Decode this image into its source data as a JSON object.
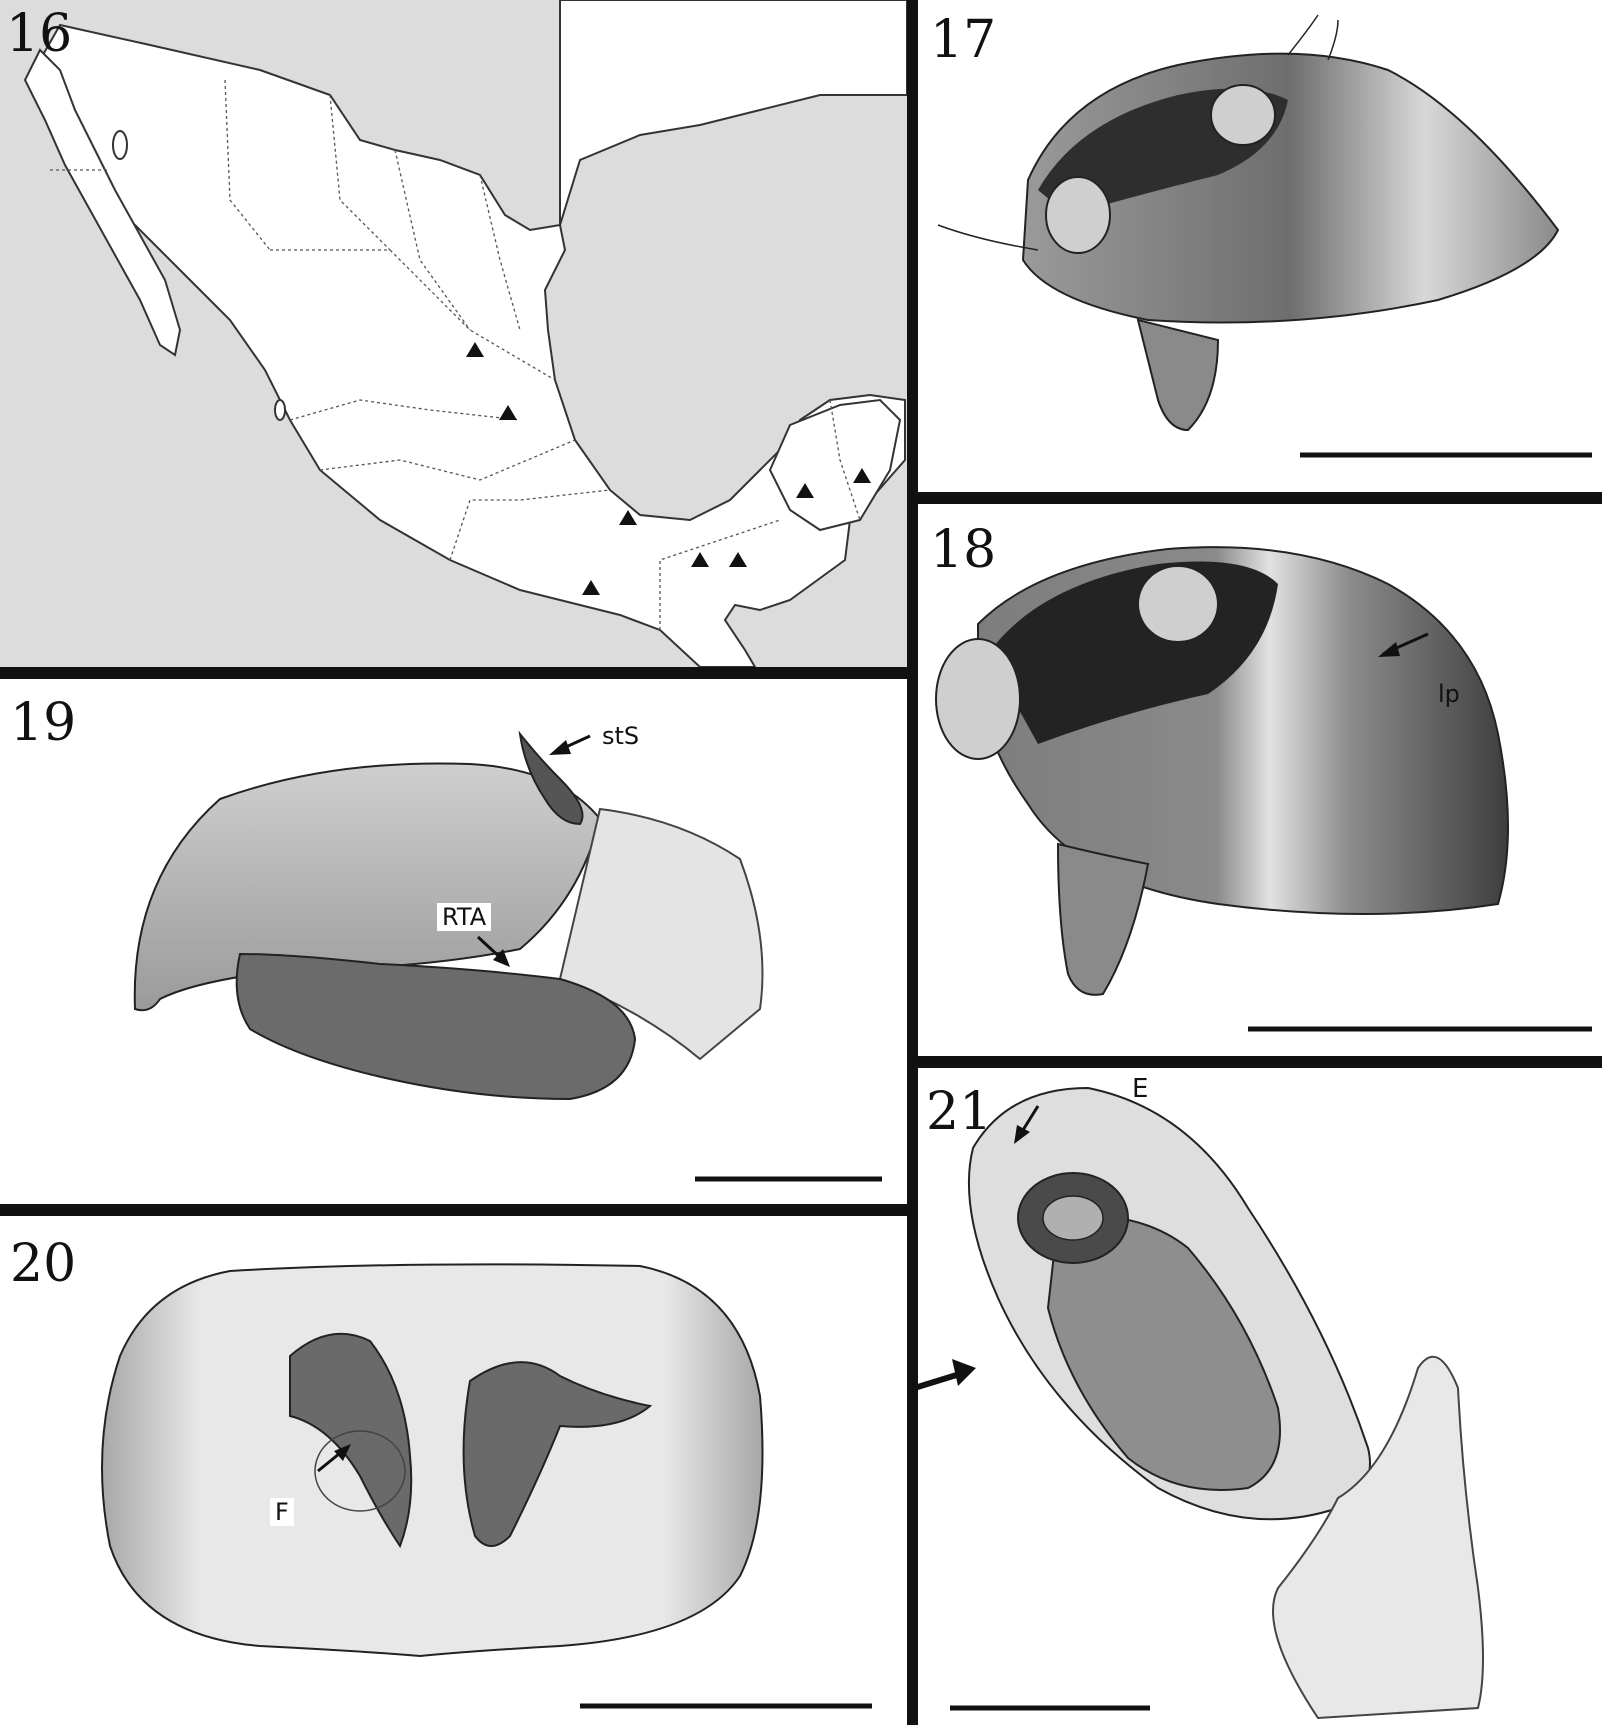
{
  "figures": [
    {
      "number": "16",
      "content": "map",
      "labels": []
    },
    {
      "number": "17",
      "content": "drawing",
      "labels": []
    },
    {
      "number": "18",
      "content": "drawing",
      "labels": [
        "lp"
      ]
    },
    {
      "number": "19",
      "content": "drawing",
      "labels": [
        "stS",
        "RTA"
      ]
    },
    {
      "number": "20",
      "content": "drawing",
      "labels": [
        "F"
      ]
    },
    {
      "number": "21",
      "content": "drawing",
      "labels": [
        "E"
      ]
    }
  ],
  "colors": {
    "sea": "#dcdcdc",
    "land": "#ffffff",
    "ink": "#111111",
    "shade": "#5a5a5a"
  },
  "map_markers": "triangle-marker"
}
